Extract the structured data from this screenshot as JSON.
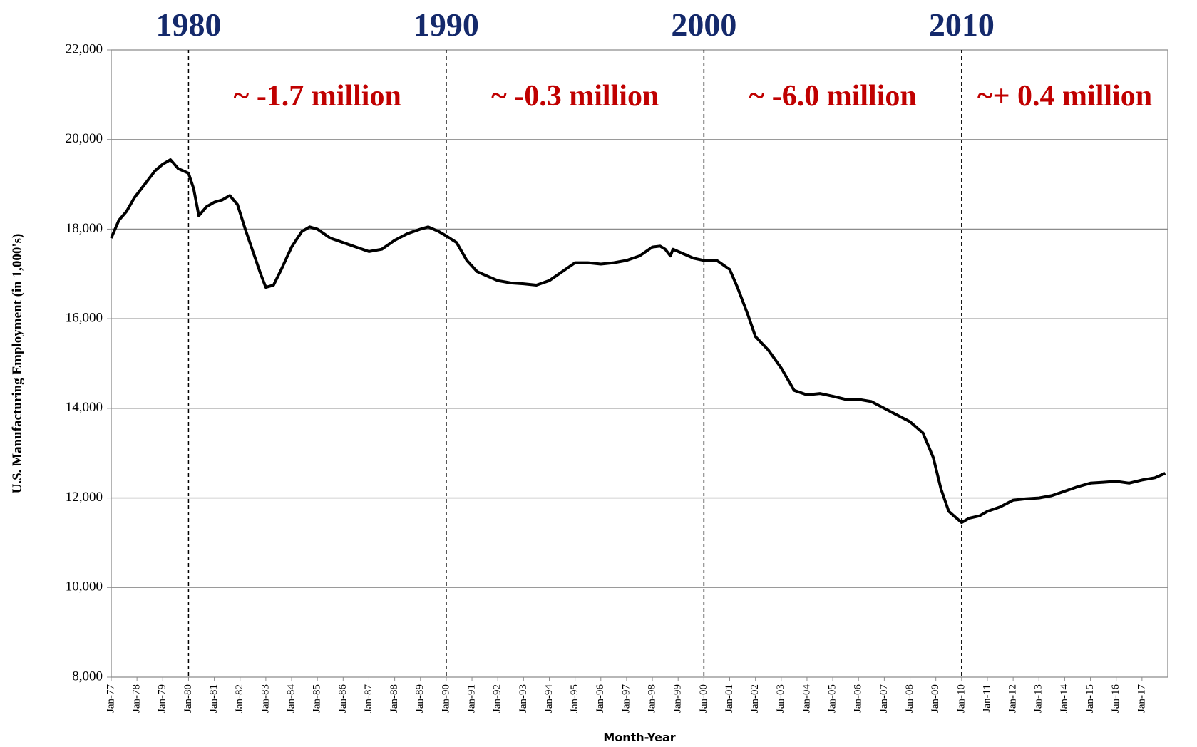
{
  "chart_data": {
    "type": "line",
    "y_label": "U.S. Manufacturing Employment (in 1,000's)",
    "x_label": "Month-Year",
    "xlim": [
      1977,
      2018
    ],
    "ylim": [
      8000,
      22000
    ],
    "yticks": [
      {
        "value": 8000,
        "label": "8,000"
      },
      {
        "value": 10000,
        "label": "10,000"
      },
      {
        "value": 12000,
        "label": "12,000"
      },
      {
        "value": 14000,
        "label": "14,000"
      },
      {
        "value": 16000,
        "label": "16,000"
      },
      {
        "value": 18000,
        "label": "18,000"
      },
      {
        "value": 20000,
        "label": "20,000"
      },
      {
        "value": 22000,
        "label": "22,000"
      }
    ],
    "xticks": [
      {
        "value": 1977,
        "label": "Jan-77"
      },
      {
        "value": 1978,
        "label": "Jan-78"
      },
      {
        "value": 1979,
        "label": "Jan-79"
      },
      {
        "value": 1980,
        "label": "Jan-80"
      },
      {
        "value": 1981,
        "label": "Jan-81"
      },
      {
        "value": 1982,
        "label": "Jan-82"
      },
      {
        "value": 1983,
        "label": "Jan-83"
      },
      {
        "value": 1984,
        "label": "Jan-84"
      },
      {
        "value": 1985,
        "label": "Jan-85"
      },
      {
        "value": 1986,
        "label": "Jan-86"
      },
      {
        "value": 1987,
        "label": "Jan-87"
      },
      {
        "value": 1988,
        "label": "Jan-88"
      },
      {
        "value": 1989,
        "label": "Jan-89"
      },
      {
        "value": 1990,
        "label": "Jan-90"
      },
      {
        "value": 1991,
        "label": "Jan-91"
      },
      {
        "value": 1992,
        "label": "Jan-92"
      },
      {
        "value": 1993,
        "label": "Jan-93"
      },
      {
        "value": 1994,
        "label": "Jan-94"
      },
      {
        "value": 1995,
        "label": "Jan-95"
      },
      {
        "value": 1996,
        "label": "Jan-96"
      },
      {
        "value": 1997,
        "label": "Jan-97"
      },
      {
        "value": 1998,
        "label": "Jan-98"
      },
      {
        "value": 1999,
        "label": "Jan-99"
      },
      {
        "value": 2000,
        "label": "Jan-00"
      },
      {
        "value": 2001,
        "label": "Jan-01"
      },
      {
        "value": 2002,
        "label": "Jan-02"
      },
      {
        "value": 2003,
        "label": "Jan-03"
      },
      {
        "value": 2004,
        "label": "Jan-04"
      },
      {
        "value": 2005,
        "label": "Jan-05"
      },
      {
        "value": 2006,
        "label": "Jan-06"
      },
      {
        "value": 2007,
        "label": "Jan-07"
      },
      {
        "value": 2008,
        "label": "Jan-08"
      },
      {
        "value": 2009,
        "label": "Jan-09"
      },
      {
        "value": 2010,
        "label": "Jan-10"
      },
      {
        "value": 2011,
        "label": "Jan-11"
      },
      {
        "value": 2012,
        "label": "Jan-12"
      },
      {
        "value": 2013,
        "label": "Jan-13"
      },
      {
        "value": 2014,
        "label": "Jan-14"
      },
      {
        "value": 2015,
        "label": "Jan-15"
      },
      {
        "value": 2016,
        "label": "Jan-16"
      },
      {
        "value": 2017,
        "label": "Jan-17"
      }
    ],
    "grid": true,
    "color": "#000000",
    "decade_markers": [
      {
        "value": 1980,
        "label": "1980"
      },
      {
        "value": 1990,
        "label": "1990"
      },
      {
        "value": 2000,
        "label": "2000"
      },
      {
        "value": 2010,
        "label": "2010"
      }
    ],
    "annotations": [
      "~  -1.7 million",
      "~  -0.3 million",
      "~  -6.0 million",
      "~+ 0.4 million"
    ],
    "x": [
      1977.0,
      1977.3,
      1977.6,
      1977.9,
      1978.3,
      1978.7,
      1979.0,
      1979.3,
      1979.6,
      1980.0,
      1980.2,
      1980.4,
      1980.7,
      1981.0,
      1981.3,
      1981.6,
      1981.9,
      1982.2,
      1982.5,
      1982.8,
      1983.0,
      1983.3,
      1983.6,
      1984.0,
      1984.4,
      1984.7,
      1985.0,
      1985.5,
      1986.0,
      1986.5,
      1987.0,
      1987.5,
      1988.0,
      1988.5,
      1989.0,
      1989.3,
      1989.7,
      1990.0,
      1990.4,
      1990.8,
      1991.2,
      1991.6,
      1992.0,
      1992.5,
      1993.0,
      1993.5,
      1994.0,
      1994.5,
      1995.0,
      1995.5,
      1996.0,
      1996.5,
      1997.0,
      1997.5,
      1998.0,
      1998.3,
      1998.5,
      1998.7,
      1998.8,
      1999.2,
      1999.6,
      2000.0,
      2000.5,
      2001.0,
      2001.3,
      2001.7,
      2002.0,
      2002.5,
      2003.0,
      2003.5,
      2004.0,
      2004.5,
      2005.0,
      2005.5,
      2006.0,
      2006.5,
      2007.0,
      2007.5,
      2008.0,
      2008.5,
      2008.9,
      2009.2,
      2009.5,
      2009.8,
      2010.0,
      2010.3,
      2010.7,
      2011.0,
      2011.5,
      2012.0,
      2012.5,
      2013.0,
      2013.5,
      2014.0,
      2014.5,
      2015.0,
      2015.5,
      2016.0,
      2016.5,
      2017.0,
      2017.5,
      2017.9
    ],
    "values": [
      17800,
      18200,
      18400,
      18700,
      19000,
      19300,
      19450,
      19550,
      19350,
      19250,
      18900,
      18300,
      18500,
      18600,
      18650,
      18750,
      18550,
      18000,
      17500,
      17000,
      16700,
      16750,
      17100,
      17600,
      17950,
      18050,
      18000,
      17800,
      17700,
      17600,
      17500,
      17550,
      17750,
      17900,
      18000,
      18050,
      17950,
      17850,
      17700,
      17300,
      17050,
      16950,
      16850,
      16800,
      16780,
      16750,
      16850,
      17050,
      17250,
      17250,
      17220,
      17250,
      17300,
      17400,
      17600,
      17620,
      17550,
      17400,
      17550,
      17450,
      17350,
      17300,
      17300,
      17100,
      16700,
      16100,
      15600,
      15300,
      14900,
      14400,
      14300,
      14330,
      14270,
      14200,
      14200,
      14150,
      14000,
      13850,
      13700,
      13450,
      12900,
      12200,
      11700,
      11550,
      11450,
      11550,
      11600,
      11700,
      11800,
      11950,
      11980,
      12000,
      12050,
      12150,
      12250,
      12330,
      12350,
      12370,
      12330,
      12400,
      12450,
      12550
    ]
  }
}
